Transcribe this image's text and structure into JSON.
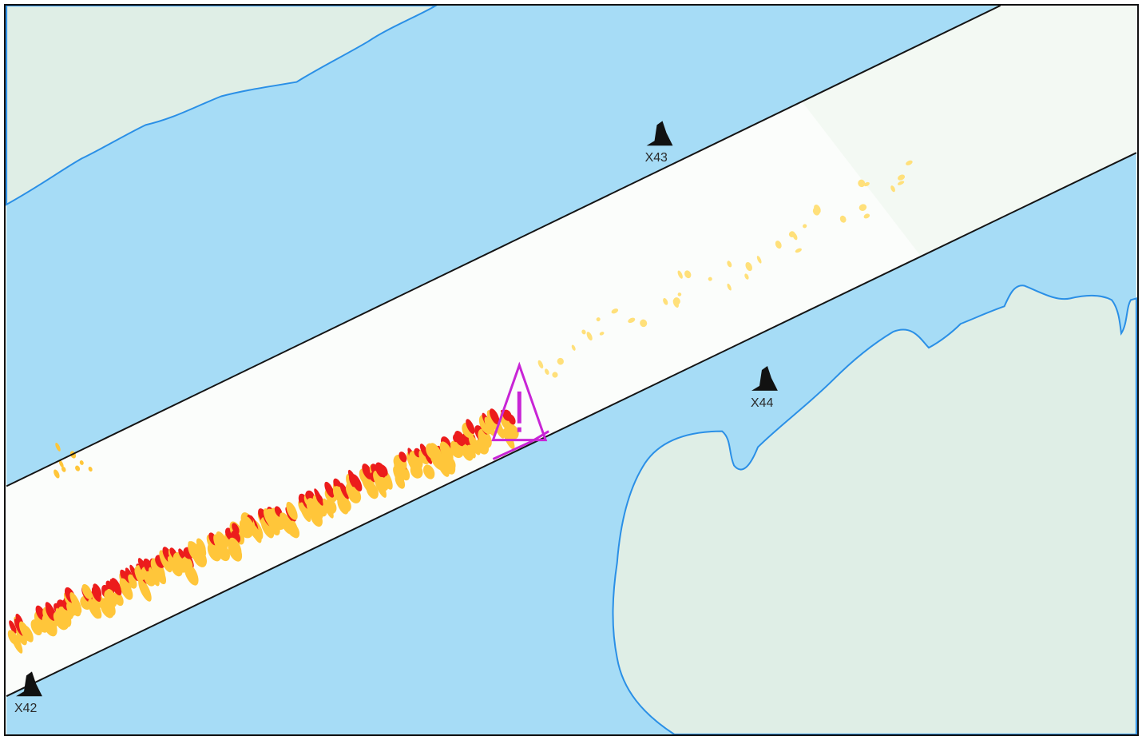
{
  "map": {
    "colors": {
      "water": "#a6dcf6",
      "land": "#dfeee6",
      "coastline": "#2a8fe6",
      "corridor": "#fbfdfb",
      "corridor_edge": "#141414",
      "shoal_high": "#ec1c1c",
      "shoal_low": "#ffc63a",
      "shoal_pale": "#ffe07a",
      "hazard": "#c825d6",
      "marker": "#111111"
    },
    "markers": [
      {
        "id": "X43",
        "label": "X43",
        "icon": "buoy-icon"
      },
      {
        "id": "X44",
        "label": "X44",
        "icon": "buoy-icon"
      },
      {
        "id": "X42",
        "label": "X42",
        "icon": "buoy-icon"
      }
    ],
    "hazard": {
      "icon": "warning-triangle-icon"
    }
  }
}
